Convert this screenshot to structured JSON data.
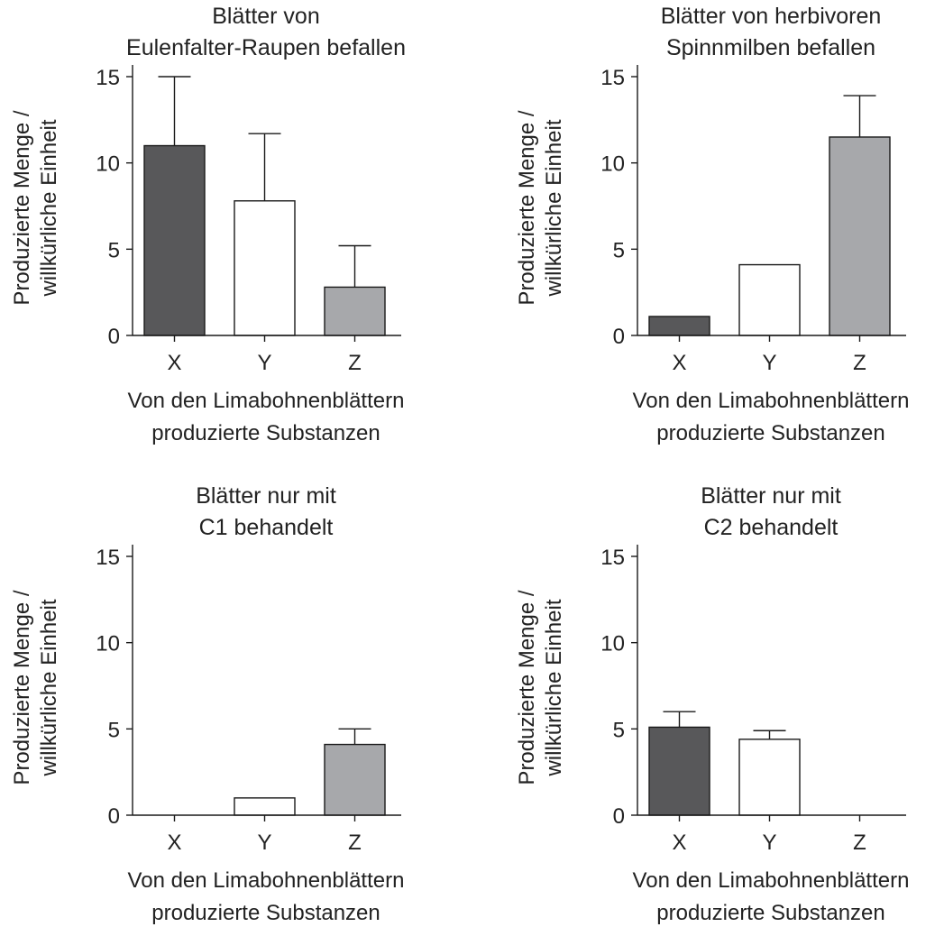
{
  "chart_data": [
    {
      "type": "bar",
      "title": [
        "Blätter von",
        "Eulenfalter-Raupen befallen"
      ],
      "categories": [
        "X",
        "Y",
        "Z"
      ],
      "values": [
        11,
        7.8,
        2.8
      ],
      "errors": [
        4,
        3.9,
        2.4
      ],
      "colors": [
        "#58585a",
        "#ffffff",
        "#a7a8ab"
      ],
      "xlabel": [
        "Von den Limabohnenblättern",
        "produzierte Substanzen"
      ],
      "ylabel": [
        "Produzierte Menge /",
        "willkürliche Einheit"
      ],
      "ylim": [
        0,
        15
      ],
      "yticks": [
        "0",
        "5",
        "10",
        "15"
      ],
      "grid": false
    },
    {
      "type": "bar",
      "title": [
        "Blätter von herbivoren",
        "Spinnmilben befallen"
      ],
      "categories": [
        "X",
        "Y",
        "Z"
      ],
      "values": [
        1.1,
        4.1,
        11.5
      ],
      "errors": [
        0,
        0,
        2.4
      ],
      "colors": [
        "#58585a",
        "#ffffff",
        "#a7a8ab"
      ],
      "xlabel": [
        "Von den Limabohnenblättern",
        "produzierte Substanzen"
      ],
      "ylabel": [
        "Produzierte Menge /",
        "willkürliche Einheit"
      ],
      "ylim": [
        0,
        15
      ],
      "yticks": [
        "0",
        "5",
        "10",
        "15"
      ],
      "grid": false
    },
    {
      "type": "bar",
      "title": [
        "Blätter nur mit",
        "C1 behandelt"
      ],
      "categories": [
        "X",
        "Y",
        "Z"
      ],
      "values": [
        0,
        1,
        4.1
      ],
      "errors": [
        0,
        0,
        0.9
      ],
      "colors": [
        "#58585a",
        "#ffffff",
        "#a7a8ab"
      ],
      "xlabel": [
        "Von den Limabohnenblättern",
        "produzierte Substanzen"
      ],
      "ylabel": [
        "Produzierte Menge /",
        "willkürliche Einheit"
      ],
      "ylim": [
        0,
        15
      ],
      "yticks": [
        "0",
        "5",
        "10",
        "15"
      ],
      "grid": false
    },
    {
      "type": "bar",
      "title": [
        "Blätter nur mit",
        "C2 behandelt"
      ],
      "categories": [
        "X",
        "Y",
        "Z"
      ],
      "values": [
        5.1,
        4.4,
        0
      ],
      "errors": [
        0.9,
        0.5,
        0
      ],
      "colors": [
        "#58585a",
        "#ffffff",
        "#a7a8ab"
      ],
      "xlabel": [
        "Von den Limabohnenblättern",
        "produzierte Substanzen"
      ],
      "ylabel": [
        "Produzierte Menge /",
        "willkürliche Einheit"
      ],
      "ylim": [
        0,
        15
      ],
      "yticks": [
        "0",
        "5",
        "10",
        "15"
      ],
      "grid": false
    }
  ]
}
